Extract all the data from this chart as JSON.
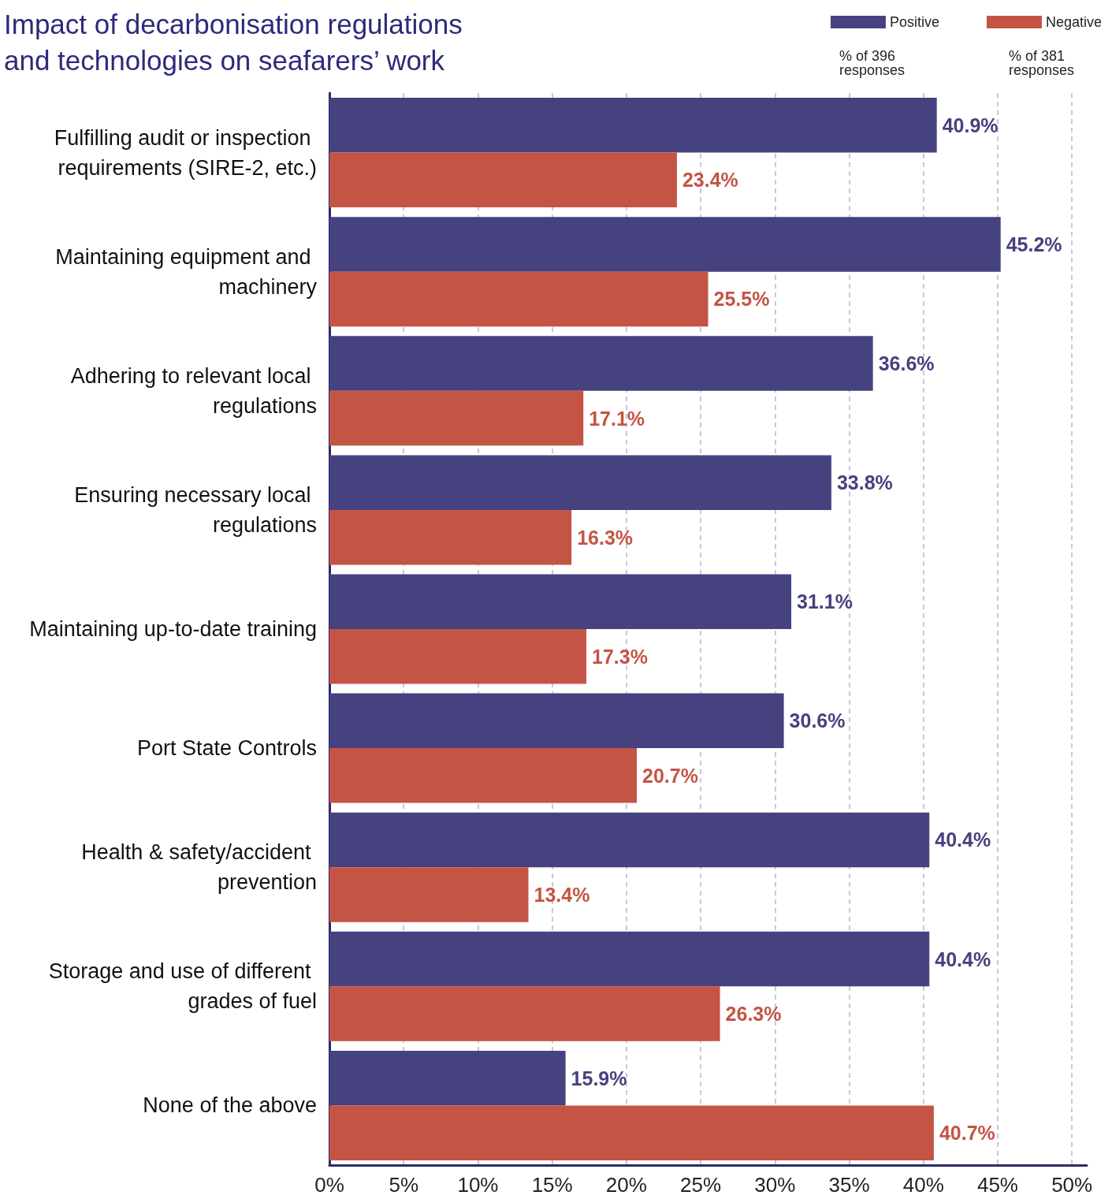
{
  "chart_data": {
    "type": "bar",
    "orientation": "horizontal",
    "title": "Impact of decarbonisation regulations and technologies on seafarers’ work",
    "categories": [
      "Fulfilling audit or inspection requirements (SIRE-2, etc.)",
      "Maintaining equipment and machinery",
      "Adhering to relevant local regulations",
      "Ensuring necessary local regulations",
      "Maintaining up-to-date training",
      "Port State Controls",
      "Health & safety/accident prevention",
      "Storage and use of different grades of fuel",
      "None of the above"
    ],
    "series": [
      {
        "name": "Positive",
        "color": "#46417f",
        "values": [
          40.9,
          45.2,
          36.6,
          33.8,
          31.1,
          30.6,
          40.4,
          40.4,
          15.9
        ],
        "value_labels": [
          "40.9%",
          "45.2%",
          "36.6%",
          "33.8%",
          "31.1%",
          "30.6%",
          "40.4%",
          "40.4%",
          "15.9%"
        ]
      },
      {
        "name": "Negative",
        "color": "#c45443",
        "values": [
          23.4,
          25.5,
          17.1,
          16.3,
          17.3,
          20.7,
          13.4,
          26.3,
          40.7
        ],
        "value_labels": [
          "23.4%",
          "25.5%",
          "17.1%",
          "16.3%",
          "17.3%",
          "20.7%",
          "13.4%",
          "26.3%",
          "40.7%"
        ]
      }
    ],
    "xlim": [
      0,
      51
    ],
    "xticks": [
      {
        "value": 0,
        "label": "0%"
      },
      {
        "value": 5,
        "label": "5%"
      },
      {
        "value": 10,
        "label": "10%"
      },
      {
        "value": 15,
        "label": "15%"
      },
      {
        "value": 20,
        "label": "20%"
      },
      {
        "value": 25,
        "label": "25%"
      },
      {
        "value": 30,
        "label": "30%"
      },
      {
        "value": 35,
        "label": "35%"
      },
      {
        "value": 40,
        "label": "40%"
      },
      {
        "value": 45,
        "label": "45%"
      },
      {
        "value": 50,
        "label": "50%"
      }
    ],
    "grid": "x",
    "legend": "top right",
    "annotations": [
      "% of 396 responses",
      "% of 381 responses"
    ]
  }
}
